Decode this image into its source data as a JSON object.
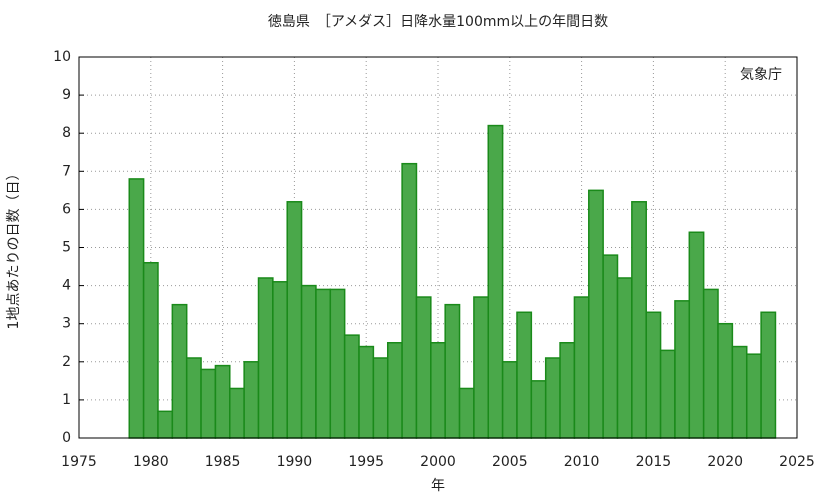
{
  "chart_data": {
    "type": "bar",
    "title": "徳島県　［アメダス］日降水量100mm以上の年間日数",
    "xlabel": "年",
    "ylabel": "1地点あたりの日数（日）",
    "annotation": "気象庁",
    "x": [
      1979,
      1980,
      1981,
      1982,
      1983,
      1984,
      1985,
      1986,
      1987,
      1988,
      1989,
      1990,
      1991,
      1992,
      1993,
      1994,
      1995,
      1996,
      1997,
      1998,
      1999,
      2000,
      2001,
      2002,
      2003,
      2004,
      2005,
      2006,
      2007,
      2008,
      2009,
      2010,
      2011,
      2012,
      2013,
      2014,
      2015,
      2016,
      2017,
      2018,
      2019,
      2020,
      2021,
      2022,
      2023
    ],
    "values": [
      6.8,
      4.6,
      0.7,
      3.5,
      2.1,
      1.8,
      1.9,
      1.3,
      2.0,
      4.2,
      4.1,
      6.2,
      4.0,
      3.9,
      3.9,
      2.7,
      2.4,
      2.1,
      2.5,
      7.2,
      3.7,
      2.5,
      3.5,
      1.3,
      3.7,
      8.2,
      2.0,
      3.3,
      1.5,
      2.1,
      2.5,
      3.7,
      6.5,
      4.8,
      4.2,
      6.2,
      3.3,
      2.3,
      3.6,
      5.4,
      3.9,
      3.0,
      2.4,
      2.2,
      3.3
    ],
    "color": "#4aa84a",
    "edgecolor": "#1a8a1a",
    "xlim": [
      1975,
      2025
    ],
    "xticks": [
      1975,
      1980,
      1985,
      1990,
      1995,
      2000,
      2005,
      2010,
      2015,
      2020,
      2025
    ],
    "ylim": [
      0,
      10
    ],
    "yticks": [
      0,
      1,
      2,
      3,
      4,
      5,
      6,
      7,
      8,
      9,
      10
    ],
    "grid": true
  }
}
